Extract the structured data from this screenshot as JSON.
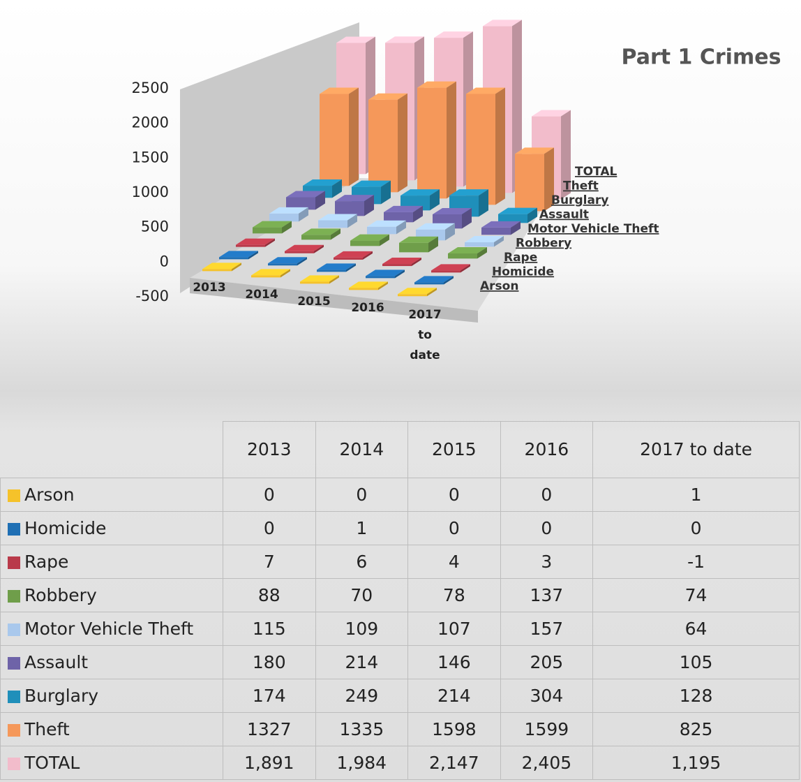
{
  "chart_data": {
    "type": "bar3d",
    "title": "Part 1 Crimes",
    "categories": [
      "2013",
      "2014",
      "2015",
      "2016",
      "2017 to date"
    ],
    "ylim": [
      -500,
      2500
    ],
    "yticks": [
      -500,
      0,
      500,
      1000,
      1500,
      2000,
      2500
    ],
    "series": [
      {
        "name": "Arson",
        "color": "#f5c22a",
        "values": [
          0,
          0,
          0,
          0,
          1
        ]
      },
      {
        "name": "Homicide",
        "color": "#1f6fb4",
        "values": [
          0,
          1,
          0,
          0,
          0
        ]
      },
      {
        "name": "Rape",
        "color": "#b93a4a",
        "values": [
          7,
          6,
          4,
          3,
          -1
        ]
      },
      {
        "name": "Robbery",
        "color": "#6f9e4a",
        "values": [
          88,
          70,
          78,
          137,
          74
        ]
      },
      {
        "name": "Motor Vehicle Theft",
        "color": "#a9c8ec",
        "values": [
          115,
          109,
          107,
          157,
          64
        ]
      },
      {
        "name": "Assault",
        "color": "#6e63a8",
        "values": [
          180,
          214,
          146,
          205,
          105
        ]
      },
      {
        "name": "Burglary",
        "color": "#1f8fba",
        "values": [
          174,
          249,
          214,
          304,
          128
        ]
      },
      {
        "name": "Theft",
        "color": "#f5985a",
        "values": [
          1327,
          1335,
          1598,
          1599,
          825
        ]
      },
      {
        "name": "TOTAL",
        "color": "#f2bccb",
        "values": [
          1891,
          1984,
          2147,
          2405,
          1195
        ],
        "value_labels": [
          "1,891",
          "1,984",
          "2,147",
          "2,405",
          "1,195"
        ]
      }
    ]
  }
}
